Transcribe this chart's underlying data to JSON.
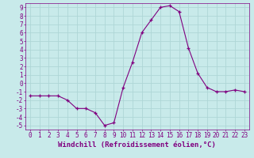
{
  "x": [
    0,
    1,
    2,
    3,
    4,
    5,
    6,
    7,
    8,
    9,
    10,
    11,
    12,
    13,
    14,
    15,
    16,
    17,
    18,
    19,
    20,
    21,
    22,
    23
  ],
  "y": [
    -1.5,
    -1.5,
    -1.5,
    -1.5,
    -2.0,
    -3.0,
    -3.0,
    -3.5,
    -5.0,
    -4.7,
    -0.5,
    2.5,
    6.0,
    7.5,
    9.0,
    9.2,
    8.5,
    4.2,
    1.2,
    -0.5,
    -1.0,
    -1.0,
    -0.8,
    -1.0
  ],
  "line_color": "#800080",
  "marker": "+",
  "marker_size": 3,
  "bg_color": "#c8eaea",
  "grid_color": "#aed6d6",
  "xlabel": "Windchill (Refroidissement éolien,°C)",
  "ylabel": "",
  "xlim": [
    -0.5,
    23.5
  ],
  "ylim": [
    -5.5,
    9.5
  ],
  "xticks": [
    0,
    1,
    2,
    3,
    4,
    5,
    6,
    7,
    8,
    9,
    10,
    11,
    12,
    13,
    14,
    15,
    16,
    17,
    18,
    19,
    20,
    21,
    22,
    23
  ],
  "yticks": [
    -5,
    -4,
    -3,
    -2,
    -1,
    0,
    1,
    2,
    3,
    4,
    5,
    6,
    7,
    8,
    9
  ],
  "xlabel_fontsize": 6.5,
  "tick_fontsize": 5.5
}
